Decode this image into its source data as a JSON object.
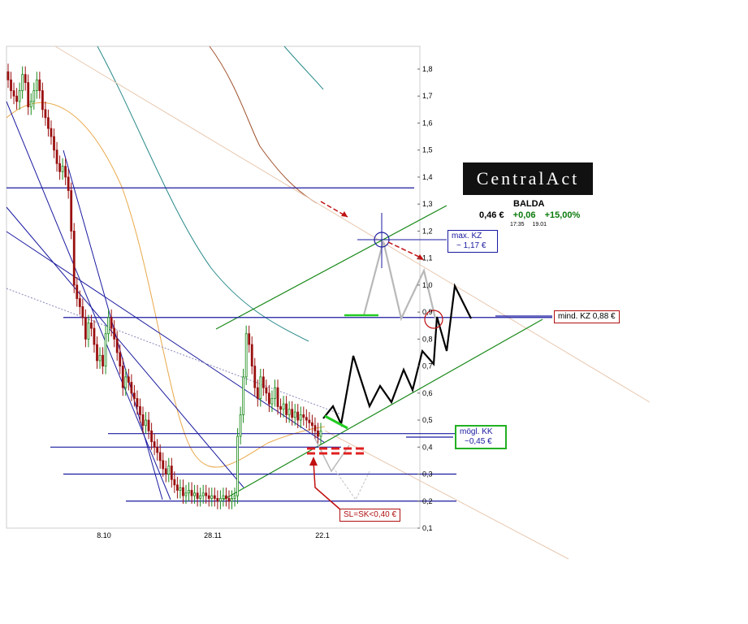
{
  "chart_data": {
    "type": "candlestick",
    "title": "",
    "xlabel": "",
    "ylabel": "",
    "ylim": [
      0.1,
      1.85
    ],
    "y_ticks": [
      "1,8",
      "1,7",
      "1,6",
      "1,5",
      "1,4",
      "1,3",
      "1,2",
      "1,1",
      "1,0",
      "0,9",
      "0,8",
      "0,7",
      "0,6",
      "0,5",
      "0,4",
      "0,3",
      "0,2",
      "0,1"
    ],
    "x_ticks": [
      "8.10",
      "28.11",
      "22.1"
    ],
    "horizontal_levels": [
      1.36,
      0.88,
      0.45,
      0.4,
      0.3,
      0.2
    ],
    "candle_closes": [
      1.76,
      1.72,
      1.7,
      1.68,
      1.72,
      1.78,
      1.75,
      1.66,
      1.68,
      1.72,
      1.76,
      1.72,
      1.65,
      1.62,
      1.58,
      1.55,
      1.5,
      1.45,
      1.42,
      1.44,
      1.4,
      1.35,
      1.2,
      1.0,
      0.95,
      0.92,
      0.88,
      0.8,
      0.86,
      0.84,
      0.78,
      0.72,
      0.74,
      0.7,
      0.82,
      0.88,
      0.84,
      0.8,
      0.75,
      0.7,
      0.62,
      0.66,
      0.64,
      0.6,
      0.58,
      0.55,
      0.52,
      0.48,
      0.5,
      0.46,
      0.42,
      0.4,
      0.38,
      0.35,
      0.32,
      0.3,
      0.33,
      0.28,
      0.26,
      0.24,
      0.25,
      0.22,
      0.23,
      0.24,
      0.22,
      0.23,
      0.21,
      0.22,
      0.23,
      0.22,
      0.21,
      0.22,
      0.21,
      0.2,
      0.21,
      0.22,
      0.21,
      0.2,
      0.21,
      0.22,
      0.44,
      0.52,
      0.66,
      0.82,
      0.78,
      0.7,
      0.62,
      0.58,
      0.66,
      0.62,
      0.6,
      0.56,
      0.58,
      0.62,
      0.55,
      0.54,
      0.56,
      0.52,
      0.54,
      0.51,
      0.53,
      0.5,
      0.52,
      0.51,
      0.5,
      0.49,
      0.48,
      0.46,
      0.44,
      0.46
    ],
    "projection_path": [
      [
        0.47,
        0.48
      ],
      [
        0.43,
        0.55
      ],
      [
        0.45,
        0.44
      ],
      [
        0.45,
        0.74
      ],
      [
        0.5,
        0.57
      ],
      [
        0.47,
        0.67
      ],
      [
        0.52,
        0.55
      ],
      [
        0.55,
        0.67
      ],
      [
        0.55,
        0.77
      ],
      [
        0.59,
        0.92
      ],
      [
        0.58,
        0.76
      ],
      [
        0.6,
        1.0
      ],
      [
        0.62,
        0.88
      ]
    ]
  },
  "logo": {
    "text": "CentralAct"
  },
  "quote": {
    "name": "BALDA",
    "price": "0,46 €",
    "change": "+0,06",
    "percent": "+15,00%",
    "time": "17:35",
    "date": "19.01"
  },
  "annotations": {
    "max_kz_line1": "max. KZ",
    "max_kz_line2": "~ 1,17 €",
    "mind_kz": "mind. KZ 0,88 €",
    "kk_line1": "mögl. KK",
    "kk_line2": "~0,45 €",
    "sl": "SL=SK<0,40 €"
  },
  "colors": {
    "level_line": "#1a1aa0",
    "channel": "#1a8a1a",
    "candle_up": "#1a8a1a",
    "candle_down": "#9a1010",
    "projection": "#000000",
    "alt_projection": "#b8b8b8",
    "stop": "#e02020",
    "ma_fast": "#e8a84a",
    "ma_mid": "#2a8a8a",
    "ma_slow": "#a0522d"
  }
}
